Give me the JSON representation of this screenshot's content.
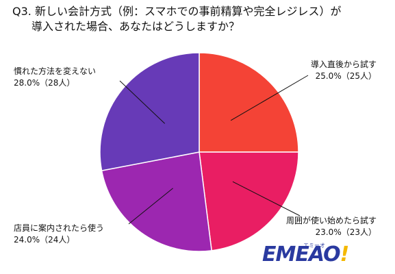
{
  "chart_data": {
    "type": "pie",
    "title_line1": "Q3. 新しい会計方式（例：スマホでの事前精算や完全レジレス）が",
    "title_line2": "導入された場合、あなたはどうしますか？",
    "slices": [
      {
        "label": "導入直後から試す",
        "value_text": "25.0%（25人）",
        "percent": 25.0,
        "count": 25,
        "color": "#f44336"
      },
      {
        "label": "周囲が使い始めたら試す",
        "value_text": "23.0%（23人）",
        "percent": 23.0,
        "count": 23,
        "color": "#e91e63"
      },
      {
        "label": "店員に案内されたら使う",
        "value_text": "24.0%（24人）",
        "percent": 24.0,
        "count": 24,
        "color": "#9c27b0"
      },
      {
        "label": "慣れた方法を変えない",
        "value_text": "28.0%（28人）",
        "percent": 28.0,
        "count": 28,
        "color": "#673ab7"
      }
    ],
    "start_angle_deg": 0,
    "direction": "clockwise"
  },
  "logo": {
    "mark": "EMEAO",
    "mark_tail": "!",
    "kana": "エミーオ"
  }
}
